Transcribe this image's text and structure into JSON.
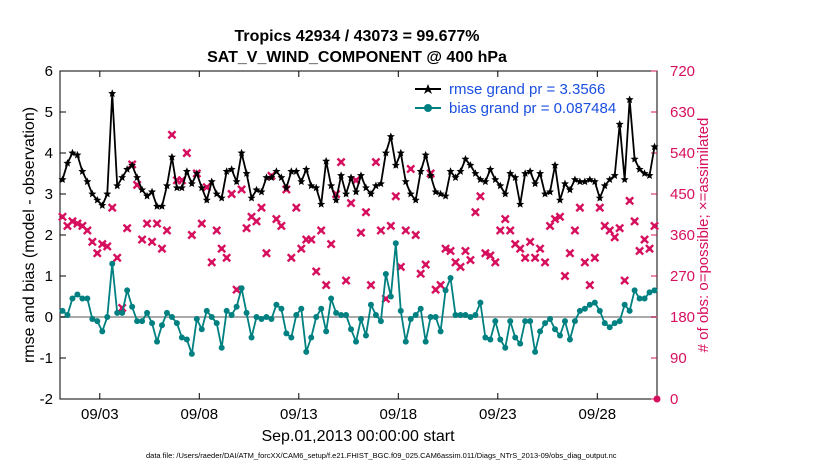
{
  "chart_data": {
    "type": "line",
    "title": "Tropics 42934 / 43073 = 99.677%",
    "subtitle": "SAT_V_WIND_COMPONENT @ 400 hPa",
    "xlabel": "Sep.01,2013 00:00:00 start",
    "ylabel": "rmse and bias (model - observation)",
    "ylabel_right": "# of obs: o=possible; ×=assimilated",
    "footnote": "data file: /Users/raeder/DAI/ATM_forcXX/CAM6_setup/f.e21.FHIST_BGC.f09_025.CAM6assim.011/Diags_NTrS_2013-09/obs_diag_output.nc",
    "xlim": [
      1.0,
      31.0
    ],
    "ylim": [
      -2,
      6
    ],
    "ylim_right": [
      0,
      720
    ],
    "x_tick_values": [
      3,
      8,
      13,
      18,
      23,
      28
    ],
    "x_tick_labels": [
      "09/03",
      "09/08",
      "09/13",
      "09/18",
      "09/23",
      "09/28"
    ],
    "y_tick_labels": [
      "-2",
      "-1",
      "0",
      "1",
      "2",
      "3",
      "4",
      "5",
      "6"
    ],
    "y_tick_labels_right": [
      "0",
      "90",
      "180",
      "270",
      "360",
      "450",
      "540",
      "630",
      "720"
    ],
    "legend": {
      "position": "top-right",
      "entries": [
        "rmse grand pr = 3.3566",
        "bias grand pr = 0.087484"
      ]
    },
    "colors": {
      "rmse": "#000000",
      "bias": "#008080",
      "obs": "#d6105e",
      "zero_line": "#aaaaaa"
    },
    "x": [
      1.125,
      1.375,
      1.625,
      1.875,
      2.125,
      2.375,
      2.625,
      2.875,
      3.125,
      3.375,
      3.625,
      3.875,
      4.125,
      4.375,
      4.625,
      4.875,
      5.125,
      5.375,
      5.625,
      5.875,
      6.125,
      6.375,
      6.625,
      6.875,
      7.125,
      7.375,
      7.625,
      7.875,
      8.125,
      8.375,
      8.625,
      8.875,
      9.125,
      9.375,
      9.625,
      9.875,
      10.125,
      10.375,
      10.625,
      10.875,
      11.125,
      11.375,
      11.625,
      11.875,
      12.125,
      12.375,
      12.625,
      12.875,
      13.125,
      13.375,
      13.625,
      13.875,
      14.125,
      14.375,
      14.625,
      14.875,
      15.125,
      15.375,
      15.625,
      15.875,
      16.125,
      16.375,
      16.625,
      16.875,
      17.125,
      17.375,
      17.625,
      17.875,
      18.125,
      18.375,
      18.625,
      18.875,
      19.125,
      19.375,
      19.625,
      19.875,
      20.125,
      20.375,
      20.625,
      20.875,
      21.125,
      21.375,
      21.625,
      21.875,
      22.125,
      22.375,
      22.625,
      22.875,
      23.125,
      23.375,
      23.625,
      23.875,
      24.125,
      24.375,
      24.625,
      24.875,
      25.125,
      25.375,
      25.625,
      25.875,
      26.125,
      26.375,
      26.625,
      26.875,
      27.125,
      27.375,
      27.625,
      27.875,
      28.125,
      28.375,
      28.625,
      28.875,
      29.125,
      29.375,
      29.625,
      29.875,
      30.125,
      30.375,
      30.625,
      30.875
    ],
    "series": [
      {
        "name": "rmse",
        "marker": "star",
        "values": [
          3.35,
          3.75,
          4.0,
          3.95,
          3.55,
          3.3,
          3.0,
          2.85,
          2.72,
          3.0,
          5.45,
          3.2,
          3.4,
          3.6,
          3.7,
          3.4,
          3.1,
          2.95,
          3.05,
          2.7,
          2.7,
          3.2,
          3.9,
          3.15,
          3.15,
          3.55,
          3.25,
          3.5,
          3.15,
          2.85,
          3.3,
          3.0,
          2.9,
          3.55,
          3.6,
          3.3,
          4.0,
          3.5,
          2.9,
          3.1,
          3.05,
          3.4,
          3.4,
          3.55,
          3.4,
          3.15,
          3.55,
          3.55,
          3.3,
          3.6,
          3.2,
          3.15,
          2.75,
          3.8,
          3.2,
          2.85,
          3.45,
          3.0,
          3.4,
          3.05,
          3.45,
          3.15,
          3.0,
          3.2,
          3.25,
          4.0,
          4.4,
          3.7,
          4.0,
          3.3,
          3.0,
          2.85,
          3.55,
          3.95,
          3.45,
          3.05,
          3.0,
          2.95,
          3.55,
          3.4,
          3.55,
          3.85,
          3.7,
          3.5,
          3.35,
          3.3,
          3.6,
          3.35,
          3.2,
          3.0,
          3.5,
          3.4,
          2.75,
          3.5,
          3.55,
          3.25,
          3.5,
          3.0,
          3.05,
          3.7,
          2.85,
          3.25,
          3.1,
          3.35,
          3.3,
          3.3,
          3.35,
          3.3,
          2.9,
          3.2,
          3.35,
          3.45,
          4.7,
          3.35,
          5.3,
          3.85,
          3.6,
          3.5,
          3.45,
          4.15
        ]
      },
      {
        "name": "bias",
        "marker": "circle",
        "values": [
          0.15,
          0.05,
          0.45,
          0.55,
          0.45,
          0.45,
          -0.05,
          -0.1,
          -0.35,
          0.0,
          1.3,
          0.1,
          0.1,
          0.65,
          0.25,
          -0.1,
          -0.1,
          0.1,
          -0.15,
          -0.6,
          -0.2,
          0.1,
          0.0,
          -0.15,
          -0.5,
          -0.55,
          -0.9,
          -0.05,
          -0.3,
          0.15,
          0.0,
          -0.15,
          -0.75,
          0.15,
          0.05,
          0.25,
          0.7,
          0.1,
          -0.5,
          0.0,
          -0.05,
          0.0,
          -0.05,
          0.3,
          0.2,
          -0.4,
          -0.5,
          0.05,
          0.2,
          -0.85,
          -0.5,
          0.0,
          0.2,
          -0.35,
          0.45,
          0.1,
          0.05,
          0.05,
          -0.3,
          -0.6,
          -0.05,
          -0.45,
          0.3,
          0.05,
          -0.1,
          1.05,
          0.5,
          1.8,
          0.15,
          -0.6,
          -0.05,
          0.05,
          0.2,
          -0.6,
          0.0,
          0.0,
          -0.35,
          0.65,
          0.95,
          0.05,
          0.05,
          0.05,
          0.0,
          0.05,
          0.35,
          -0.5,
          -0.55,
          -0.1,
          -0.55,
          -0.75,
          -0.1,
          -0.5,
          -0.65,
          -0.1,
          -0.1,
          -0.85,
          -0.35,
          -0.15,
          -0.05,
          -0.3,
          -0.45,
          -0.1,
          -0.55,
          -0.1,
          0.15,
          0.2,
          0.3,
          0.35,
          0.15,
          -0.15,
          -0.25,
          -0.15,
          -0.1,
          0.3,
          0.15,
          0.65,
          0.45,
          0.45,
          0.6,
          0.65
        ]
      },
      {
        "name": "obs_count",
        "axis": "right",
        "marker": "x",
        "values": [
          400,
          380,
          390,
          385,
          380,
          370,
          345,
          320,
          340,
          335,
          420,
          310,
          200,
          375,
          515,
          470,
          350,
          385,
          345,
          385,
          330,
          370,
          580,
          480,
          480,
          540,
          360,
          495,
          385,
          465,
          300,
          370,
          330,
          310,
          450,
          240,
          460,
          375,
          400,
          390,
          420,
          320,
          490,
          395,
          380,
          460,
          310,
          420,
          330,
          350,
          350,
          280,
          370,
          250,
          340,
          450,
          520,
          260,
          430,
          480,
          365,
          410,
          250,
          520,
          370,
          220,
          380,
          445,
          290,
          370,
          505,
          360,
          275,
          295,
          495,
          240,
          250,
          330,
          325,
          300,
          290,
          325,
          305,
          410,
          445,
          320,
          315,
          300,
          370,
          395,
          370,
          340,
          330,
          310,
          345,
          310,
          330,
          300,
          380,
          395,
          400,
          270,
          320,
          370,
          420,
          300,
          250,
          310,
          420,
          380,
          370,
          355,
          375,
          260,
          435,
          390,
          325,
          350,
          330,
          380
        ]
      }
    ]
  }
}
